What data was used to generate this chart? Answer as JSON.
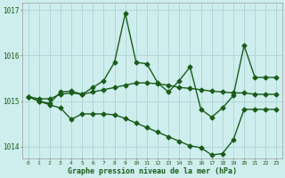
{
  "title": "Graphe pression niveau de la mer (hPa)",
  "background_color": "#ceeeed",
  "grid_color": "#b0d8d8",
  "line_color": "#1a5c1a",
  "x_values": [
    0,
    1,
    2,
    3,
    4,
    5,
    6,
    7,
    8,
    9,
    10,
    11,
    12,
    13,
    14,
    15,
    16,
    17,
    18,
    19,
    20,
    21,
    22,
    23
  ],
  "line1": [
    1015.1,
    1015.05,
    1015.05,
    1015.15,
    1015.18,
    1015.15,
    1015.2,
    1015.25,
    1015.3,
    1015.35,
    1015.4,
    1015.4,
    1015.38,
    1015.35,
    1015.3,
    1015.28,
    1015.25,
    1015.22,
    1015.2,
    1015.18,
    1015.18,
    1015.15,
    1015.15,
    1015.15
  ],
  "line2": [
    1015.1,
    1015.0,
    1014.95,
    1015.2,
    1015.22,
    1015.15,
    1015.3,
    1015.45,
    1015.85,
    1016.92,
    1015.85,
    1015.82,
    1015.4,
    1015.2,
    1015.45,
    1015.75,
    1014.82,
    1014.65,
    1014.85,
    1015.12,
    1016.22,
    1015.52,
    1015.52,
    1015.52
  ],
  "line3": [
    1015.1,
    1015.0,
    1014.92,
    1014.85,
    1014.6,
    1014.72,
    1014.72,
    1014.72,
    1014.7,
    1014.62,
    1014.52,
    1014.42,
    1014.32,
    1014.22,
    1014.12,
    1014.02,
    1013.98,
    1013.82,
    1013.85,
    1014.15,
    1014.82,
    1014.82,
    1014.82,
    1014.82
  ],
  "ylim_min": 1013.75,
  "ylim_max": 1017.15,
  "yticks": [
    1014,
    1015,
    1016,
    1017
  ],
  "marker": "D",
  "marker_size": 2.5,
  "line_width": 1.0
}
